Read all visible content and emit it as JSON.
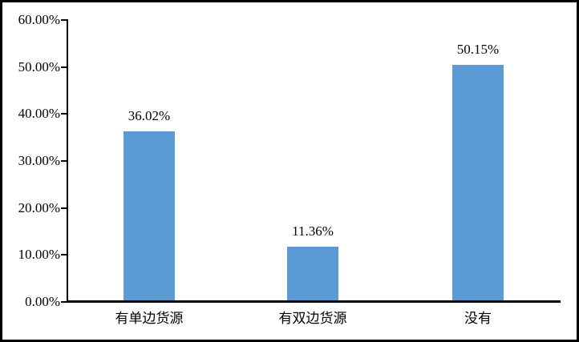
{
  "figure": {
    "background_color": "#ffffff",
    "border_color": "#000000"
  },
  "chart_data": {
    "type": "bar",
    "categories": [
      "有单边货源",
      "有双边货源",
      "没有"
    ],
    "values": [
      36.02,
      11.36,
      50.15
    ],
    "value_labels": [
      "36.02%",
      "11.36%",
      "50.15%"
    ],
    "yticks": [
      "60.00%",
      "50.00%",
      "40.00%",
      "30.00%",
      "20.00%",
      "10.00%",
      "0.00%"
    ],
    "ytick_values": [
      60,
      50,
      40,
      30,
      20,
      10,
      0
    ],
    "ylim": [
      0,
      60
    ],
    "title": "",
    "xlabel": "",
    "ylabel": "",
    "bar_color": "#5B9BD5",
    "axis_color": "#000000",
    "text_color": "#000000",
    "grid": false,
    "legend_position": "none"
  }
}
